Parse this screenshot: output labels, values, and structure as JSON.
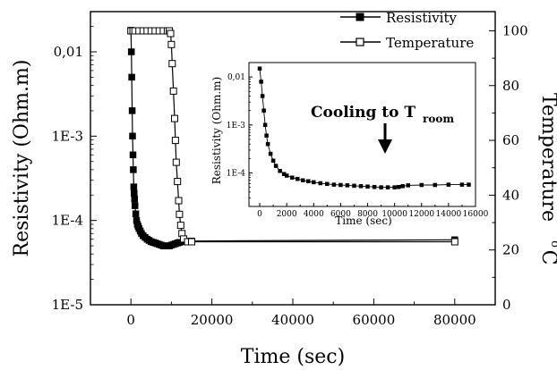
{
  "chart_data": [
    {
      "type": "line",
      "title": "",
      "xlabel": "Time (sec)",
      "ylabel": "Resistivity (Ohm.m)",
      "y2label": "Temperature",
      "y2unit_deg": "o",
      "y2unit_c": "C",
      "xlim": [
        -10000,
        90000
      ],
      "x_ticks": [
        0,
        20000,
        40000,
        60000,
        80000
      ],
      "x_tick_labels": [
        "0",
        "20000",
        "40000",
        "60000",
        "80000"
      ],
      "y_scale": "log",
      "ylim": [
        1e-05,
        0.03
      ],
      "y_ticks": [
        1e-05,
        0.0001,
        0.001,
        0.01
      ],
      "y_tick_labels": [
        "1E-5",
        "1E-4",
        "1E-3",
        "0,01"
      ],
      "y2lim": [
        0,
        107
      ],
      "y2_ticks": [
        0,
        20,
        40,
        60,
        80,
        100
      ],
      "y2_tick_labels": [
        "0",
        "20",
        "40",
        "60",
        "80",
        "100"
      ],
      "legend_position": "top-right",
      "series": [
        {
          "name": "Resistivity",
          "axis": "left",
          "marker": "filled-square",
          "x": [
            0,
            100,
            200,
            300,
            400,
            500,
            600,
            700,
            800,
            900,
            1000,
            1200,
            1400,
            1600,
            1800,
            2000,
            2300,
            2600,
            3000,
            3500,
            4000,
            4500,
            5000,
            5500,
            6000,
            6500,
            7000,
            7500,
            8000,
            8500,
            9000,
            9500,
            10000,
            10500,
            11000,
            11500,
            12000,
            13000,
            14000,
            15000,
            80000
          ],
          "y": [
            0.018,
            0.01,
            0.005,
            0.002,
            0.001,
            0.0006,
            0.0004,
            0.00025,
            0.00021,
            0.00018,
            0.00015,
            0.00012,
            0.0001,
            9e-05,
            8.5e-05,
            8e-05,
            7.5e-05,
            7e-05,
            6.6e-05,
            6.3e-05,
            6e-05,
            5.8e-05,
            5.6e-05,
            5.5e-05,
            5.4e-05,
            5.3e-05,
            5.2e-05,
            5.1e-05,
            5e-05,
            5e-05,
            5e-05,
            5e-05,
            5.1e-05,
            5.2e-05,
            5.3e-05,
            5.4e-05,
            5.5e-05,
            5.6e-05,
            5.7e-05,
            5.7e-05,
            5.9e-05
          ]
        },
        {
          "name": "Temperature",
          "axis": "right",
          "marker": "open-square",
          "x": [
            0,
            500,
            1000,
            2000,
            3000,
            4000,
            5000,
            6000,
            7000,
            8000,
            9000,
            9500,
            9800,
            10000,
            10200,
            10500,
            10800,
            11000,
            11200,
            11500,
            11800,
            12000,
            12300,
            12600,
            13000,
            14000,
            15000,
            80000
          ],
          "y": [
            100,
            100,
            100,
            100,
            100,
            100,
            100,
            100,
            100,
            100,
            100,
            100,
            99,
            95,
            88,
            78,
            68,
            60,
            52,
            45,
            38,
            33,
            29,
            26,
            24,
            23,
            23,
            23
          ]
        }
      ]
    },
    {
      "type": "line",
      "title": "",
      "xlabel": "Time (sec)",
      "ylabel": "Resistivity (Ohm.m)",
      "xlim": [
        -800,
        16000
      ],
      "x_ticks": [
        0,
        2000,
        4000,
        6000,
        8000,
        10000,
        12000,
        14000,
        16000
      ],
      "x_tick_labels": [
        "0",
        "2000",
        "4000",
        "6000",
        "8000",
        "10000",
        "12000",
        "14000",
        "16000"
      ],
      "y_scale": "log",
      "ylim": [
        2e-05,
        0.02
      ],
      "y_ticks": [
        0.0001,
        0.001,
        0.01
      ],
      "y_tick_labels": [
        "1E-4",
        "1E-3",
        "0,01"
      ],
      "series": [
        {
          "name": "Resistivity",
          "marker": "filled-square",
          "x": [
            0,
            100,
            200,
            300,
            400,
            500,
            600,
            800,
            1000,
            1200,
            1500,
            1800,
            2000,
            2400,
            2800,
            3200,
            3600,
            4000,
            4500,
            5000,
            5500,
            6000,
            6500,
            7000,
            7500,
            8000,
            8500,
            9000,
            9500,
            10000,
            10300,
            10600,
            11000,
            12000,
            13000,
            14000,
            15000,
            15500
          ],
          "y": [
            0.015,
            0.008,
            0.004,
            0.002,
            0.001,
            0.0006,
            0.0004,
            0.00025,
            0.00018,
            0.00014,
            0.00011,
            9.5e-05,
            8.8e-05,
            8e-05,
            7.5e-05,
            7e-05,
            6.7e-05,
            6.4e-05,
            6.1e-05,
            5.9e-05,
            5.7e-05,
            5.6e-05,
            5.5e-05,
            5.4e-05,
            5.3e-05,
            5.2e-05,
            5.1e-05,
            5e-05,
            5e-05,
            5e-05,
            5.1e-05,
            5.3e-05,
            5.5e-05,
            5.6e-05,
            5.6e-05,
            5.7e-05,
            5.7e-05,
            5.7e-05
          ]
        }
      ],
      "annotation": {
        "text": "Cooling to T",
        "subscript": "room",
        "x": 10000,
        "y": 5e-05
      }
    }
  ]
}
